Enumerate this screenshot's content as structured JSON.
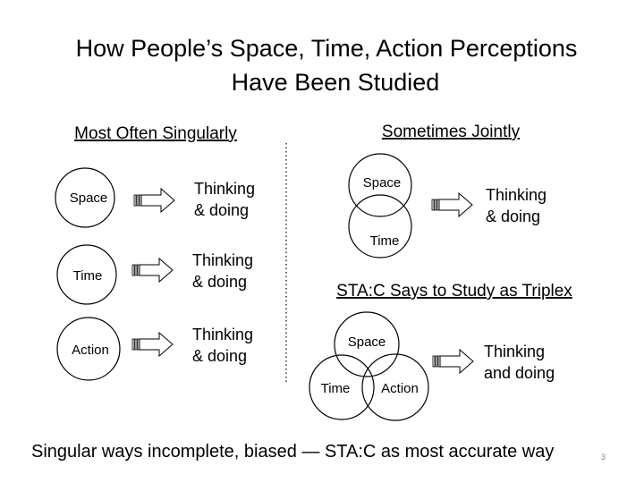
{
  "title": {
    "line1": "How People’s Space, Time, Action Perceptions",
    "line2": "Have Been Studied"
  },
  "left": {
    "header": "Most Often Singularly",
    "rows": [
      {
        "circle": "Space",
        "out1": "Thinking",
        "out2": "& doing"
      },
      {
        "circle": "Time",
        "out1": "Thinking",
        "out2": "& doing"
      },
      {
        "circle": "Action",
        "out1": "Thinking",
        "out2": "& doing"
      }
    ]
  },
  "joint": {
    "header": "Sometimes Jointly",
    "circles": [
      "Space",
      "Time"
    ],
    "out1": "Thinking",
    "out2": "& doing"
  },
  "triplex": {
    "header": "STA:C Says to Study as Triplex",
    "circles": [
      "Space",
      "Time",
      "Action"
    ],
    "out1": "Thinking",
    "out2": "and doing"
  },
  "footer": "Singular ways incomplete, biased — STA:C as most accurate way",
  "page_number": "3",
  "icons": {
    "arrow": "striped-block-arrow-right"
  }
}
